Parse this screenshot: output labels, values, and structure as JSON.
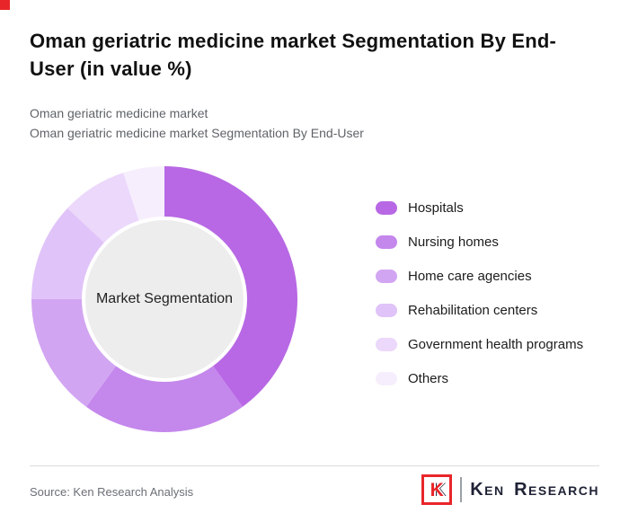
{
  "page": {
    "title": "Oman geriatric medicine market Segmentation By End-User (in value %)",
    "subtitle1": "Oman geriatric medicine market",
    "subtitle2": "Oman geriatric medicine market Segmentation By End-User",
    "source": "Source: Ken Research Analysis",
    "accent_color": "#e8262a"
  },
  "brand": {
    "mark_letter": "K",
    "word1": "Ken",
    "word2": "Research"
  },
  "chart_data": {
    "type": "pie",
    "donut": true,
    "center_label": "Market Segmentation",
    "legend_position": "right",
    "categories": [
      "Hospitals",
      "Nursing homes",
      "Home care agencies",
      "Rehabilitation centers",
      "Government health programs",
      "Others"
    ],
    "values": [
      40,
      20,
      15,
      12,
      8,
      5
    ],
    "colors": [
      "#b868e4",
      "#c487ec",
      "#d2a5f2",
      "#e0c3f8",
      "#ebd8fb",
      "#f6eefd"
    ],
    "inner_radius": 92,
    "outer_radius": 148,
    "center_fill": "#ededed"
  }
}
